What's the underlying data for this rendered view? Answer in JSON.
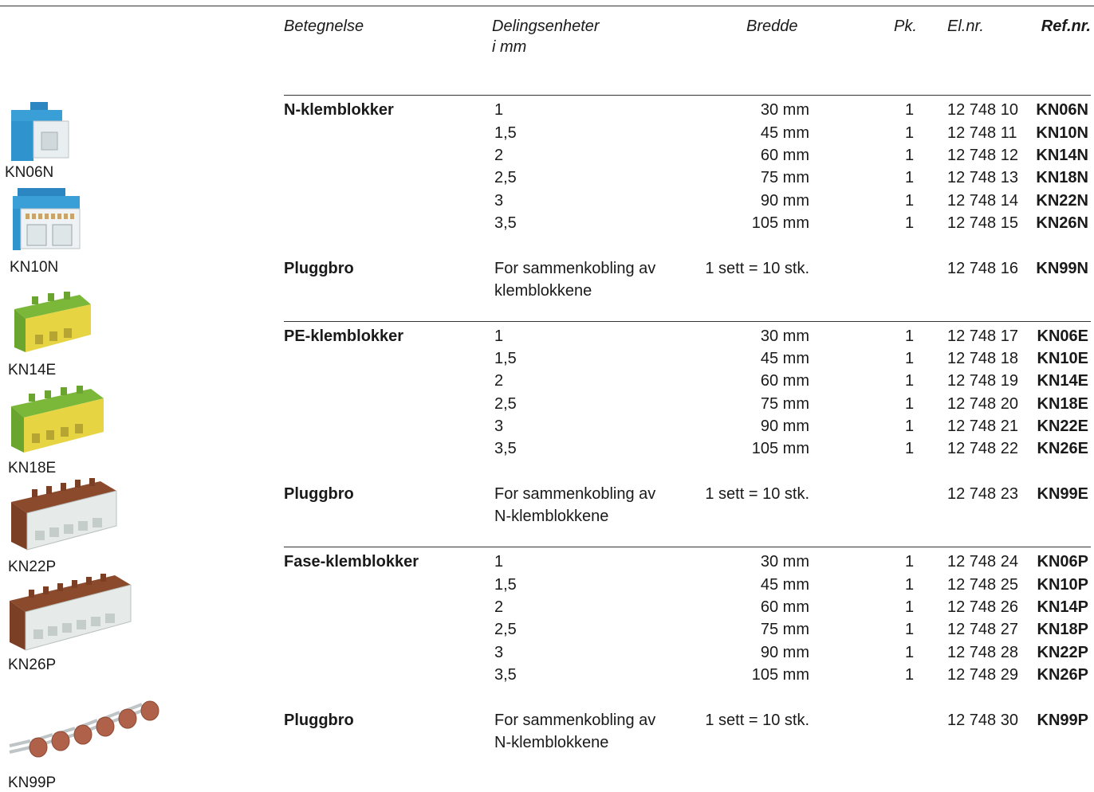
{
  "header": {
    "betegnelse": "Betegnelse",
    "delingsenheter": "Delingsenheter",
    "delingsenheter_unit": "i mm",
    "bredde": "Bredde",
    "pk": "Pk.",
    "elnr": "El.nr.",
    "refnr": "Ref.nr."
  },
  "sections": [
    {
      "name": "N-klemblokker",
      "rows": [
        {
          "del": "1",
          "bredde": "30 mm",
          "pk": "1",
          "elnr": "12 748 10",
          "ref": "KN06N"
        },
        {
          "del": "1,5",
          "bredde": "45 mm",
          "pk": "1",
          "elnr": "12 748 11",
          "ref": "KN10N"
        },
        {
          "del": "2",
          "bredde": "60 mm",
          "pk": "1",
          "elnr": "12 748 12",
          "ref": "KN14N"
        },
        {
          "del": "2,5",
          "bredde": "75 mm",
          "pk": "1",
          "elnr": "12 748 13",
          "ref": "KN18N"
        },
        {
          "del": "3",
          "bredde": "90 mm",
          "pk": "1",
          "elnr": "12 748 14",
          "ref": "KN22N"
        },
        {
          "del": "3,5",
          "bredde": "105 mm",
          "pk": "1",
          "elnr": "12 748 15",
          "ref": "KN26N"
        }
      ],
      "bridge": {
        "name": "Pluggbro",
        "desc1": "For sammenkobling av",
        "desc2": "klemblokkene",
        "qty": "1 sett = 10 stk.",
        "elnr": "12 748 16",
        "ref": "KN99N"
      }
    },
    {
      "name": "PE-klemblokker",
      "rows": [
        {
          "del": "1",
          "bredde": "30 mm",
          "pk": "1",
          "elnr": "12 748 17",
          "ref": "KN06E"
        },
        {
          "del": "1,5",
          "bredde": "45 mm",
          "pk": "1",
          "elnr": "12 748 18",
          "ref": "KN10E"
        },
        {
          "del": "2",
          "bredde": "60 mm",
          "pk": "1",
          "elnr": "12 748 19",
          "ref": "KN14E"
        },
        {
          "del": "2,5",
          "bredde": "75 mm",
          "pk": "1",
          "elnr": "12 748 20",
          "ref": "KN18E"
        },
        {
          "del": "3",
          "bredde": "90 mm",
          "pk": "1",
          "elnr": "12 748 21",
          "ref": "KN22E"
        },
        {
          "del": "3,5",
          "bredde": "105 mm",
          "pk": "1",
          "elnr": "12 748 22",
          "ref": "KN26E"
        }
      ],
      "bridge": {
        "name": "Pluggbro",
        "desc1": "For sammenkobling av",
        "desc2": "N-klemblokkene",
        "qty": "1 sett = 10 stk.",
        "elnr": "12 748 23",
        "ref": "KN99E"
      }
    },
    {
      "name": "Fase-klemblokker",
      "rows": [
        {
          "del": "1",
          "bredde": "30 mm",
          "pk": "1",
          "elnr": "12 748 24",
          "ref": "KN06P"
        },
        {
          "del": "1,5",
          "bredde": "45 mm",
          "pk": "1",
          "elnr": "12 748 25",
          "ref": "KN10P"
        },
        {
          "del": "2",
          "bredde": "60 mm",
          "pk": "1",
          "elnr": "12 748 26",
          "ref": "KN14P"
        },
        {
          "del": "2,5",
          "bredde": "75 mm",
          "pk": "1",
          "elnr": "12 748 27",
          "ref": "KN18P"
        },
        {
          "del": "3",
          "bredde": "90 mm",
          "pk": "1",
          "elnr": "12 748 28",
          "ref": "KN22P"
        },
        {
          "del": "3,5",
          "bredde": "105 mm",
          "pk": "1",
          "elnr": "12 748 29",
          "ref": "KN26P"
        }
      ],
      "bridge": {
        "name": "Pluggbro",
        "desc1": "For sammenkobling av",
        "desc2": "N-klemblokkene",
        "qty": "1 sett = 10 stk.",
        "elnr": "12 748 30",
        "ref": "KN99P"
      }
    }
  ],
  "products": [
    {
      "label": "KN06N",
      "color": "#3a9fd6"
    },
    {
      "label": "KN10N",
      "color": "#3a9fd6"
    },
    {
      "label": "KN14E",
      "color": "#7bb83a"
    },
    {
      "label": "KN18E",
      "color": "#7bb83a"
    },
    {
      "label": "KN22P",
      "color": "#8b4a2c"
    },
    {
      "label": "KN26P",
      "color": "#8b4a2c"
    },
    {
      "label": "KN99P",
      "color": "#b0614a"
    }
  ]
}
